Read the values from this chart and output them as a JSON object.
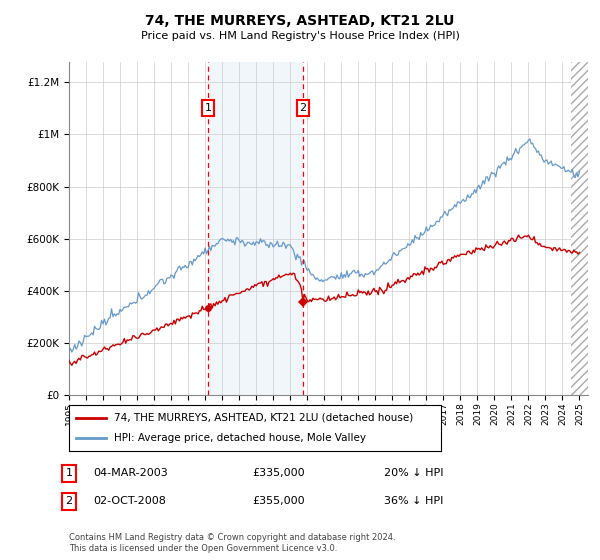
{
  "title": "74, THE MURREYS, ASHTEAD, KT21 2LU",
  "subtitle": "Price paid vs. HM Land Registry's House Price Index (HPI)",
  "ylabel_ticks": [
    "£0",
    "£200K",
    "£400K",
    "£600K",
    "£800K",
    "£1M",
    "£1.2M"
  ],
  "ytick_values": [
    0,
    200000,
    400000,
    600000,
    800000,
    1000000,
    1200000
  ],
  "ylim": [
    0,
    1280000
  ],
  "xlim_start": 1995.0,
  "xlim_end": 2025.5,
  "hpi_color": "#6699cc",
  "price_color": "#cc0000",
  "shading_color": "#ddeeff",
  "marker1_year": 2003.17,
  "marker1_price": 335000,
  "marker2_year": 2008.75,
  "marker2_price": 355000,
  "marker1_label": "04-MAR-2003",
  "marker1_amount": "£335,000",
  "marker1_pct": "20% ↓ HPI",
  "marker2_label": "02-OCT-2008",
  "marker2_amount": "£355,000",
  "marker2_pct": "36% ↓ HPI",
  "legend_line1": "74, THE MURREYS, ASHTEAD, KT21 2LU (detached house)",
  "legend_line2": "HPI: Average price, detached house, Mole Valley",
  "footnote": "Contains HM Land Registry data © Crown copyright and database right 2024.\nThis data is licensed under the Open Government Licence v3.0.",
  "xtick_years": [
    1995,
    1996,
    1997,
    1998,
    1999,
    2000,
    2001,
    2002,
    2003,
    2004,
    2005,
    2006,
    2007,
    2008,
    2009,
    2010,
    2011,
    2012,
    2013,
    2014,
    2015,
    2016,
    2017,
    2018,
    2019,
    2020,
    2021,
    2022,
    2023,
    2024,
    2025
  ]
}
